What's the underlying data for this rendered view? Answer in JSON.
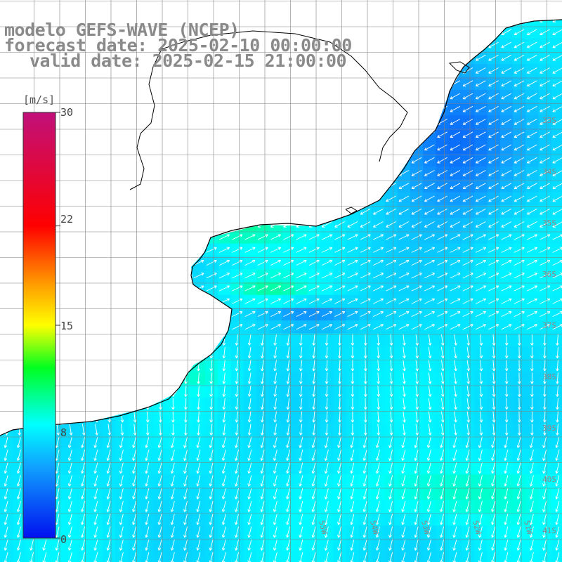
{
  "title": {
    "line1": "modelo GEFS-WAVE (NCEP)",
    "line2": "forecast date: 2025-02-10 00:00:00",
    "line3": "valid date: 2025-02-15 21:00:00"
  },
  "colorbar": {
    "unit": "[m/s]",
    "ticks": [
      {
        "label": "30",
        "value": 30
      },
      {
        "label": "22",
        "value": 22
      },
      {
        "label": "15",
        "value": 15
      },
      {
        "label": "8",
        "value": 8
      },
      {
        "label": "0",
        "value": 0
      }
    ],
    "stops": [
      {
        "value": 0,
        "color": "#0010f0"
      },
      {
        "value": 5,
        "color": "#10a0ff"
      },
      {
        "value": 8,
        "color": "#00ffff"
      },
      {
        "value": 12,
        "color": "#00ff20"
      },
      {
        "value": 15,
        "color": "#ffff00"
      },
      {
        "value": 18,
        "color": "#ff9800"
      },
      {
        "value": 22,
        "color": "#ff0000"
      },
      {
        "value": 30,
        "color": "#c0107a"
      }
    ]
  },
  "lat_labels": [
    {
      "label": "33S",
      "value": -33
    },
    {
      "label": "34S",
      "value": -34
    },
    {
      "label": "35S",
      "value": -35
    },
    {
      "label": "36S",
      "value": -36
    },
    {
      "label": "37S",
      "value": -37
    },
    {
      "label": "38S",
      "value": -38
    },
    {
      "label": "39S",
      "value": -39
    },
    {
      "label": "40S",
      "value": -40
    },
    {
      "label": "41S",
      "value": -41
    }
  ],
  "lon_labels": [
    {
      "label": "55W",
      "value": -55
    },
    {
      "label": "54W",
      "value": -54
    },
    {
      "label": "53W",
      "value": -53
    },
    {
      "label": "52W",
      "value": -52
    },
    {
      "label": "51W",
      "value": -51
    }
  ],
  "colors": {
    "title": "#8a8a8a",
    "gridline": "#808080",
    "coastline": "#000000",
    "arrow": "#ffffff",
    "land": "#ffffff"
  }
}
